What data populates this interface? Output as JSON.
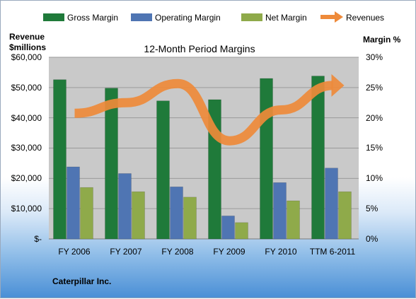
{
  "colors": {
    "gross": "#1f7a3a",
    "operating": "#4f75b3",
    "net": "#8faa4a",
    "revenues": "#ee8a3a",
    "plot_bg": "#c9c9c9"
  },
  "labels": {
    "left_axis_title_1": "Revenue",
    "left_axis_title_2": "$millions",
    "right_axis_title": "Margin %",
    "company": "Caterpillar Inc."
  },
  "chart_data": {
    "type": "bar",
    "title": "12-Month Period Margins",
    "categories": [
      "FY 2006",
      "FY 2007",
      "FY 2008",
      "FY 2009",
      "FY 2010",
      "TTM 6-2011"
    ],
    "y_left": {
      "ticks": [
        "$-",
        "$10,000",
        "$20,000",
        "$30,000",
        "$40,000",
        "$50,000",
        "$60,000"
      ],
      "ylim": [
        0,
        60000
      ]
    },
    "y_right": {
      "ticks": [
        "0%",
        "5%",
        "10%",
        "15%",
        "20%",
        "25%",
        "30%"
      ],
      "ylim": [
        0,
        30
      ]
    },
    "legend_position": "top",
    "series": [
      {
        "name": "Gross Margin",
        "axis": "right",
        "values": [
          26.3,
          24.9,
          22.8,
          23.0,
          26.5,
          26.9
        ]
      },
      {
        "name": "Operating Margin",
        "axis": "right",
        "values": [
          11.9,
          10.8,
          8.6,
          3.8,
          9.3,
          11.7
        ]
      },
      {
        "name": "Net Margin",
        "axis": "right",
        "values": [
          8.5,
          7.8,
          6.9,
          2.7,
          6.3,
          7.8
        ]
      },
      {
        "name": "Revenues",
        "axis": "left",
        "type": "line",
        "values": [
          41500,
          45000,
          51300,
          32400,
          42600,
          50700
        ]
      }
    ]
  }
}
